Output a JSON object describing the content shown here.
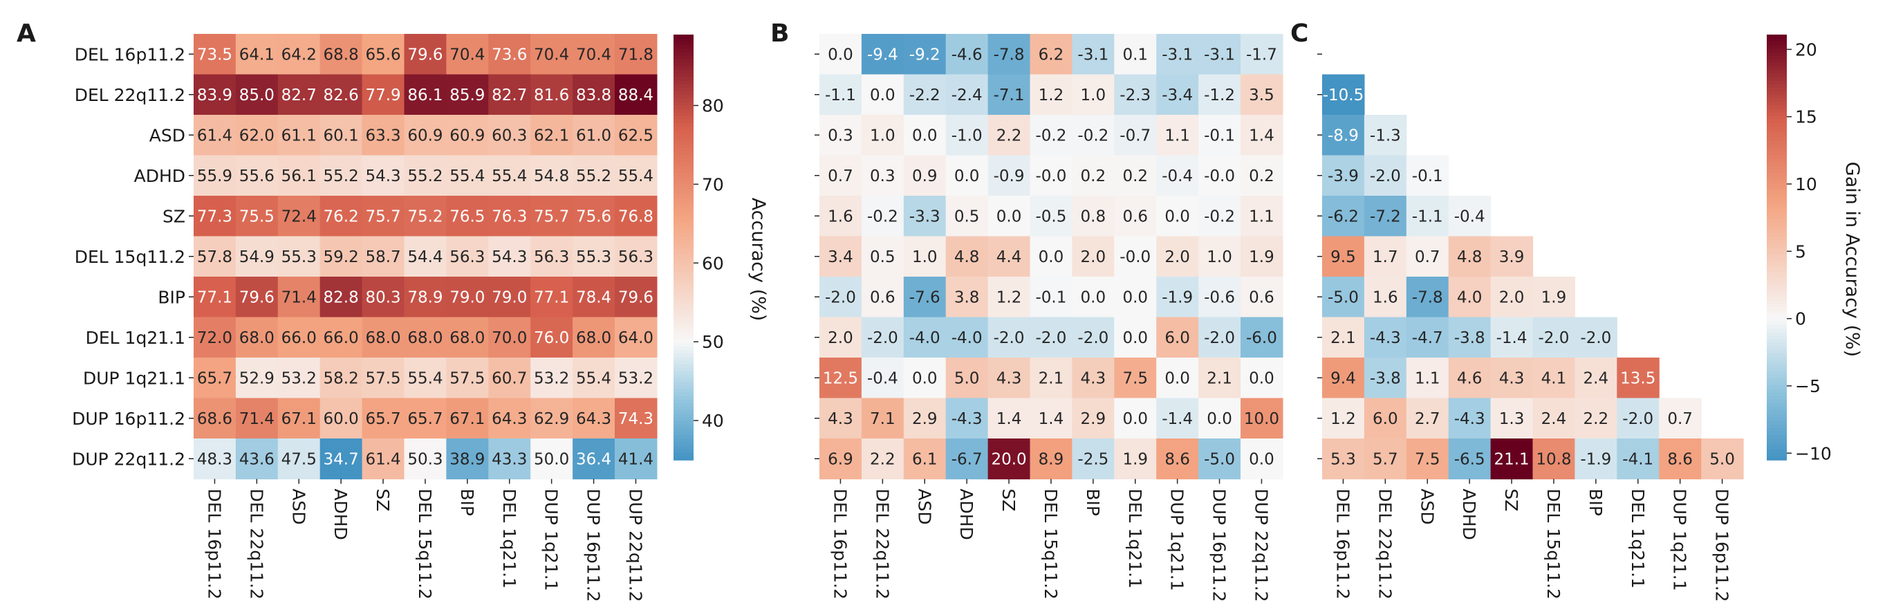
{
  "chart_data": [
    {
      "type": "heatmap",
      "panel": "A",
      "rows": [
        "DEL 16p11.2",
        "DEL 22q11.2",
        "ASD",
        "ADHD",
        "SZ",
        "DEL 15q11.2",
        "BIP",
        "DEL 1q21.1",
        "DUP 1q21.1",
        "DUP 16p11.2",
        "DUP 22q11.2"
      ],
      "columns": [
        "DEL 16p11.2",
        "DEL 22q11.2",
        "ASD",
        "ADHD",
        "SZ",
        "DEL 15q11.2",
        "BIP",
        "DEL 1q21.1",
        "DUP 1q21.1",
        "DUP 16p11.2",
        "DUP 22q11.2"
      ],
      "values": [
        [
          "73.5",
          "64.1",
          "64.2",
          "68.8",
          "65.6",
          "79.6",
          "70.4",
          "73.6",
          "70.4",
          "70.4",
          "71.8"
        ],
        [
          "83.9",
          "85.0",
          "82.7",
          "82.6",
          "77.9",
          "86.1",
          "85.9",
          "82.7",
          "81.6",
          "83.8",
          "88.4"
        ],
        [
          "61.4",
          "62.0",
          "61.1",
          "60.1",
          "63.3",
          "60.9",
          "60.9",
          "60.3",
          "62.1",
          "61.0",
          "62.5"
        ],
        [
          "55.9",
          "55.6",
          "56.1",
          "55.2",
          "54.3",
          "55.2",
          "55.4",
          "55.4",
          "54.8",
          "55.2",
          "55.4"
        ],
        [
          "77.3",
          "75.5",
          "72.4",
          "76.2",
          "75.7",
          "75.2",
          "76.5",
          "76.3",
          "75.7",
          "75.6",
          "76.8"
        ],
        [
          "57.8",
          "54.9",
          "55.3",
          "59.2",
          "58.7",
          "54.4",
          "56.3",
          "54.3",
          "56.3",
          "55.3",
          "56.3"
        ],
        [
          "77.1",
          "79.6",
          "71.4",
          "82.8",
          "80.3",
          "78.9",
          "79.0",
          "79.0",
          "77.1",
          "78.4",
          "79.6"
        ],
        [
          "72.0",
          "68.0",
          "66.0",
          "66.0",
          "68.0",
          "68.0",
          "68.0",
          "70.0",
          "76.0",
          "68.0",
          "64.0"
        ],
        [
          "65.7",
          "52.9",
          "53.2",
          "58.2",
          "57.5",
          "55.4",
          "57.5",
          "60.7",
          "53.2",
          "55.4",
          "53.2"
        ],
        [
          "68.6",
          "71.4",
          "67.1",
          "60.0",
          "65.7",
          "65.7",
          "67.1",
          "64.3",
          "62.9",
          "64.3",
          "74.3"
        ],
        [
          "48.3",
          "43.6",
          "47.5",
          "34.7",
          "61.4",
          "50.3",
          "38.9",
          "43.3",
          "50.0",
          "36.4",
          "41.4"
        ]
      ],
      "colorbar": {
        "label": "Accuracy (%)",
        "vmin": 35,
        "vmax": 89,
        "center": 50,
        "ticks": [
          "40",
          "50",
          "60",
          "70",
          "80"
        ]
      }
    },
    {
      "type": "heatmap",
      "panel": "B",
      "rows": [
        "DEL 16p11.2",
        "DEL 22q11.2",
        "ASD",
        "ADHD",
        "SZ",
        "DEL 15q11.2",
        "BIP",
        "DEL 1q21.1",
        "DUP 1q21.1",
        "DUP 16p11.2",
        "DUP 22q11.2"
      ],
      "columns": [
        "DEL 16p11.2",
        "DEL 22q11.2",
        "ASD",
        "ADHD",
        "SZ",
        "DEL 15q11.2",
        "BIP",
        "DEL 1q21.1",
        "DUP 1q21.1",
        "DUP 16p11.2",
        "DUP 22q11.2"
      ],
      "values": [
        [
          "0.0",
          "-9.4",
          "-9.2",
          "-4.6",
          "-7.8",
          "6.2",
          "-3.1",
          "0.1",
          "-3.1",
          "-3.1",
          "-1.7"
        ],
        [
          "-1.1",
          "0.0",
          "-2.2",
          "-2.4",
          "-7.1",
          "1.2",
          "1.0",
          "-2.3",
          "-3.4",
          "-1.2",
          "3.5"
        ],
        [
          "0.3",
          "1.0",
          "0.0",
          "-1.0",
          "2.2",
          "-0.2",
          "-0.2",
          "-0.7",
          "1.1",
          "-0.1",
          "1.4"
        ],
        [
          "0.7",
          "0.3",
          "0.9",
          "0.0",
          "-0.9",
          "-0.0",
          "0.2",
          "0.2",
          "-0.4",
          "-0.0",
          "0.2"
        ],
        [
          "1.6",
          "-0.2",
          "-3.3",
          "0.5",
          "0.0",
          "-0.5",
          "0.8",
          "0.6",
          "0.0",
          "-0.2",
          "1.1"
        ],
        [
          "3.4",
          "0.5",
          "1.0",
          "4.8",
          "4.4",
          "0.0",
          "2.0",
          "-0.0",
          "2.0",
          "1.0",
          "1.9"
        ],
        [
          "-2.0",
          "0.6",
          "-7.6",
          "3.8",
          "1.2",
          "-0.1",
          "0.0",
          "0.0",
          "-1.9",
          "-0.6",
          "0.6"
        ],
        [
          "2.0",
          "-2.0",
          "-4.0",
          "-4.0",
          "-2.0",
          "-2.0",
          "-2.0",
          "0.0",
          "6.0",
          "-2.0",
          "-6.0"
        ],
        [
          "12.5",
          "-0.4",
          "0.0",
          "5.0",
          "4.3",
          "2.1",
          "4.3",
          "7.5",
          "0.0",
          "2.1",
          "0.0"
        ],
        [
          "4.3",
          "7.1",
          "2.9",
          "-4.3",
          "1.4",
          "1.4",
          "2.9",
          "0.0",
          "-1.4",
          "0.0",
          "10.0"
        ],
        [
          "6.9",
          "2.2",
          "6.1",
          "-6.7",
          "20.0",
          "8.9",
          "-2.5",
          "1.9",
          "8.6",
          "-5.0",
          "0.0"
        ]
      ]
    },
    {
      "type": "heatmap",
      "panel": "C",
      "rows": [
        "DEL 16p11.2",
        "DEL 22q11.2",
        "ASD",
        "ADHD",
        "SZ",
        "DEL 15q11.2",
        "BIP",
        "DEL 1q21.1",
        "DUP 1q21.1",
        "DUP 16p11.2",
        "DUP 22q11.2"
      ],
      "columns": [
        "DEL 16p11.2",
        "DEL 22q11.2",
        "ASD",
        "ADHD",
        "SZ",
        "DEL 15q11.2",
        "BIP",
        "DEL 1q21.1",
        "DUP 1q21.1",
        "DUP 16p11.2"
      ],
      "values": [
        [],
        [
          "-10.5"
        ],
        [
          "-8.9",
          "-1.3"
        ],
        [
          "-3.9",
          "-2.0",
          "-0.1"
        ],
        [
          "-6.2",
          "-7.2",
          "-1.1",
          "-0.4"
        ],
        [
          "9.5",
          "1.7",
          "0.7",
          "4.8",
          "3.9"
        ],
        [
          "-5.0",
          "1.6",
          "-7.8",
          "4.0",
          "2.0",
          "1.9"
        ],
        [
          "2.1",
          "-4.3",
          "-4.7",
          "-3.8",
          "-1.4",
          "-2.0",
          "-2.0"
        ],
        [
          "9.4",
          "-3.8",
          "1.1",
          "4.6",
          "4.3",
          "4.1",
          "2.4",
          "13.5"
        ],
        [
          "1.2",
          "6.0",
          "2.7",
          "-4.3",
          "1.3",
          "2.4",
          "2.2",
          "-2.0",
          "0.7"
        ],
        [
          "5.3",
          "5.7",
          "7.5",
          "-6.5",
          "21.1",
          "10.8",
          "-1.9",
          "-4.1",
          "8.6",
          "5.0"
        ]
      ],
      "colorbar": {
        "label": "Gain in Accuracy (%)",
        "vmin": -10.5,
        "vmax": 21.1,
        "center": 0,
        "ticks": [
          "−10",
          "−5",
          "0",
          "5",
          "10",
          "15",
          "20"
        ]
      }
    }
  ]
}
